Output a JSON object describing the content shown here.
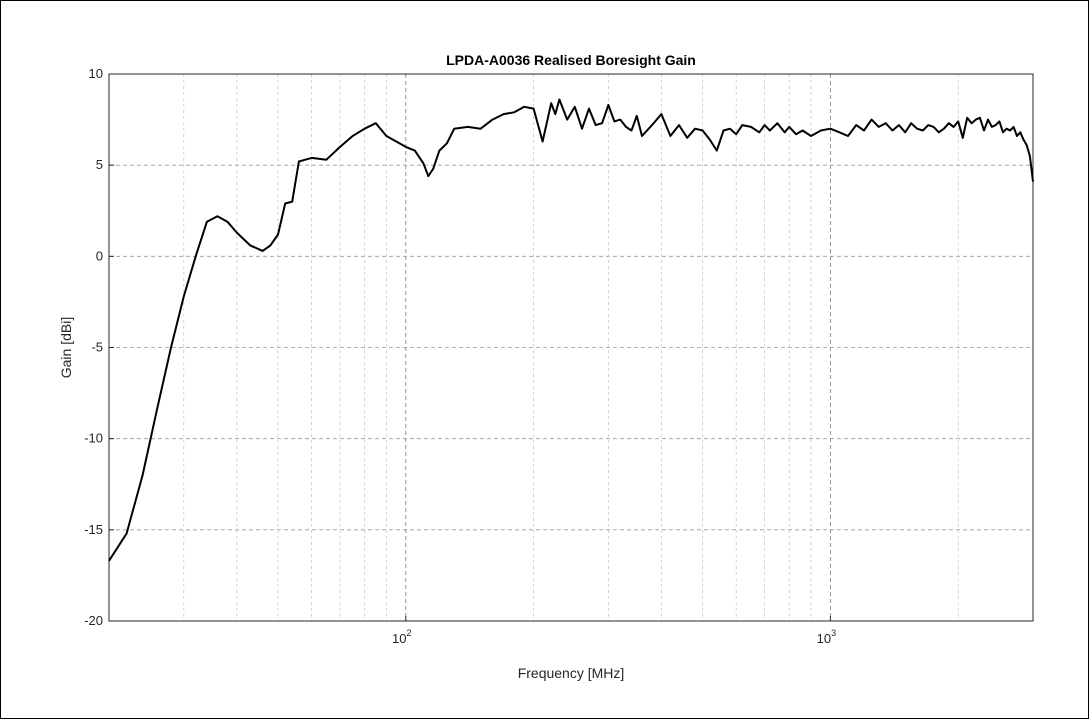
{
  "chart_data": {
    "type": "line",
    "title": "LPDA-A0036 Realised Boresight Gain",
    "xlabel": "Frequency [MHz]",
    "ylabel": "Gain [dBi]",
    "xscale": "log",
    "xlim": [
      20,
      3000
    ],
    "ylim": [
      -20,
      10
    ],
    "yticks": [
      10,
      5,
      0,
      -5,
      -10,
      -15,
      -20
    ],
    "ytick_labels": [
      "10",
      "5",
      "0",
      "-5",
      "-10",
      "-15",
      "-20"
    ],
    "xticks": [
      100,
      1000
    ],
    "xtick_labels": [
      {
        "base": "10",
        "exp": "2"
      },
      {
        "base": "10",
        "exp": "3"
      }
    ],
    "grid": true,
    "line_color": "#000000",
    "series": [
      {
        "x": [
          20,
          22,
          24,
          26,
          28,
          30,
          32,
          34,
          36,
          38,
          40,
          43,
          46,
          48,
          50,
          52,
          54,
          56,
          58,
          60,
          65,
          70,
          75,
          80,
          85,
          90,
          95,
          100,
          105,
          110,
          113,
          116,
          120,
          125,
          130,
          140,
          150,
          160,
          170,
          180,
          190,
          200,
          210,
          220,
          225,
          230,
          240,
          250,
          260,
          270,
          280,
          290,
          300,
          310,
          320,
          330,
          340,
          350,
          360,
          380,
          400,
          420,
          440,
          460,
          480,
          500,
          520,
          540,
          560,
          580,
          600,
          620,
          650,
          680,
          700,
          720,
          750,
          780,
          800,
          830,
          860,
          900,
          950,
          1000,
          1050,
          1100,
          1150,
          1200,
          1250,
          1300,
          1350,
          1400,
          1450,
          1500,
          1550,
          1600,
          1650,
          1700,
          1750,
          1800,
          1850,
          1900,
          1950,
          2000,
          2050,
          2100,
          2150,
          2200,
          2250,
          2300,
          2350,
          2400,
          2450,
          2500,
          2550,
          2600,
          2650,
          2700,
          2750,
          2800,
          2850,
          2900,
          2950,
          3000
        ],
        "y": [
          -16.7,
          -15.2,
          -12.0,
          -8.3,
          -5.0,
          -2.2,
          0.0,
          1.9,
          2.2,
          1.9,
          1.3,
          0.6,
          0.3,
          0.6,
          1.2,
          2.9,
          3.0,
          5.2,
          5.3,
          5.4,
          5.3,
          6.0,
          6.6,
          7.0,
          7.3,
          6.6,
          6.3,
          6.0,
          5.8,
          5.1,
          4.4,
          4.8,
          5.8,
          6.2,
          7.0,
          7.1,
          7.0,
          7.5,
          7.8,
          7.9,
          8.2,
          8.1,
          6.3,
          8.4,
          7.8,
          8.6,
          7.5,
          8.2,
          7.0,
          8.1,
          7.2,
          7.3,
          8.3,
          7.4,
          7.5,
          7.1,
          6.9,
          7.7,
          6.6,
          7.2,
          7.8,
          6.6,
          7.2,
          6.5,
          7.0,
          6.9,
          6.4,
          5.8,
          6.9,
          7.0,
          6.7,
          7.2,
          7.1,
          6.8,
          7.2,
          6.9,
          7.3,
          6.8,
          7.1,
          6.7,
          6.9,
          6.6,
          6.9,
          7.0,
          6.8,
          6.6,
          7.2,
          6.9,
          7.5,
          7.1,
          7.3,
          6.9,
          7.2,
          6.8,
          7.3,
          7.0,
          6.9,
          7.2,
          7.1,
          6.8,
          7.0,
          7.3,
          7.1,
          7.4,
          6.5,
          7.6,
          7.3,
          7.5,
          7.6,
          6.9,
          7.5,
          7.1,
          7.2,
          7.4,
          6.8,
          7.0,
          6.9,
          7.1,
          6.6,
          6.8,
          6.4,
          6.1,
          5.5,
          4.1
        ]
      }
    ]
  }
}
